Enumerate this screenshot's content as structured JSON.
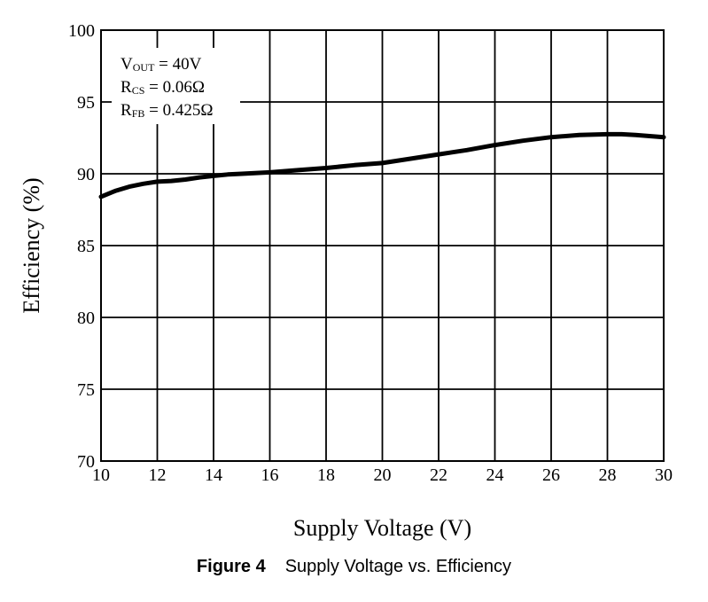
{
  "chart_data": {
    "type": "line",
    "xlabel": "Supply Voltage (V)",
    "ylabel": "Efficiency (%)",
    "xlim": [
      10,
      30
    ],
    "ylim": [
      70,
      100
    ],
    "x_ticks": [
      10,
      12,
      14,
      16,
      18,
      20,
      22,
      24,
      26,
      28,
      30
    ],
    "y_ticks": [
      70,
      75,
      80,
      85,
      90,
      95,
      100
    ],
    "grid": true,
    "legend_placement": "top-left",
    "annotations": [
      {
        "main": "V",
        "sub": "OUT",
        "rest": " = 40V"
      },
      {
        "main": "R",
        "sub": "CS",
        "rest": " = 0.06Ω"
      },
      {
        "main": "R",
        "sub": "FB",
        "rest": " = 0.425Ω"
      }
    ],
    "series": [
      {
        "line_color": "#000000",
        "x": [
          10,
          10.5,
          11,
          11.5,
          12,
          12.5,
          13,
          13.5,
          14,
          14.5,
          15,
          16,
          17,
          18,
          19,
          20,
          21,
          22,
          23,
          24,
          25,
          26,
          27,
          28,
          28.5,
          29,
          30
        ],
        "y": [
          88.4,
          88.8,
          89.1,
          89.3,
          89.45,
          89.5,
          89.6,
          89.75,
          89.85,
          89.95,
          90.0,
          90.1,
          90.25,
          90.4,
          90.6,
          90.75,
          91.05,
          91.35,
          91.65,
          92.0,
          92.3,
          92.55,
          92.7,
          92.75,
          92.75,
          92.7,
          92.55
        ]
      }
    ]
  },
  "caption": {
    "figure_number": "Figure 4",
    "text": "Supply Voltage vs. Efficiency"
  }
}
